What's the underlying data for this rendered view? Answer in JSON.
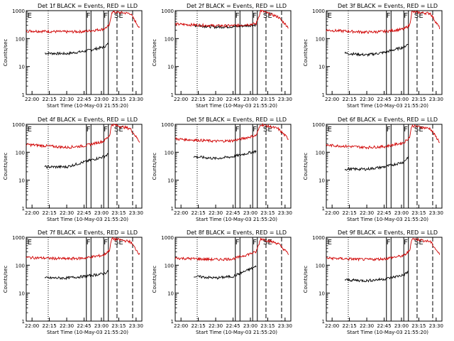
{
  "figure": {
    "ylabel": "Counts/sec",
    "xlabel": "Start Time (10-May-03 21:55:20)",
    "x_tick_labels": [
      "22:00",
      "22:15",
      "22:30",
      "22:45",
      "23:00",
      "23:15",
      "23:30"
    ],
    "y_tick_labels": [
      "1",
      "10",
      "100",
      "1000"
    ],
    "series_colors": {
      "events": "#000000",
      "lld": "#d00000"
    }
  },
  "chart_data": [
    {
      "type": "line",
      "title": "Det 1f BLACK = Events, RED = LLD",
      "markers": [
        "E",
        "F",
        "F",
        "S",
        "E"
      ],
      "ylim": [
        1,
        1000
      ],
      "yscale": "log",
      "xlabel": "Start Time (10-May-03 21:55:20)",
      "ylabel": "Counts/sec",
      "series": [
        {
          "color": "black",
          "points": [
            [
              "22:11",
              30
            ],
            [
              "22:30",
              29
            ],
            [
              "22:45",
              35
            ],
            [
              "23:02",
              50
            ],
            [
              "23:06",
              65
            ]
          ]
        },
        {
          "color": "red",
          "points": [
            [
              "21:55",
              190
            ],
            [
              "22:30",
              175
            ],
            [
              "22:45",
              180
            ],
            [
              "23:02",
              220
            ],
            [
              "23:07",
              300
            ],
            [
              "23:09",
              900
            ],
            [
              "23:25",
              800
            ],
            [
              "23:33",
              240
            ]
          ]
        }
      ]
    },
    {
      "type": "line",
      "title": "Det 2f BLACK = Events, RED = LLD",
      "markers": [
        "F",
        "F",
        "S",
        "E"
      ],
      "ylim": [
        1,
        1000
      ],
      "yscale": "log",
      "xlabel": "Start Time (10-May-03 21:55:20)",
      "ylabel": "Counts/sec",
      "series": [
        {
          "color": "black",
          "points": [
            [
              "22:11",
              300
            ],
            [
              "22:30",
              260
            ],
            [
              "22:45",
              270
            ],
            [
              "23:05",
              310
            ]
          ]
        },
        {
          "color": "red",
          "points": [
            [
              "21:55",
              330
            ],
            [
              "22:30",
              290
            ],
            [
              "22:45",
              290
            ],
            [
              "23:05",
              340
            ],
            [
              "23:09",
              1000
            ],
            [
              "23:24",
              600
            ],
            [
              "23:33",
              250
            ]
          ]
        }
      ]
    },
    {
      "type": "line",
      "title": "Det 3f BLACK = Events, RED = LLD",
      "markers": [
        "E",
        "F",
        "F",
        "S",
        "E"
      ],
      "ylim": [
        1,
        1000
      ],
      "yscale": "log",
      "xlabel": "Start Time (10-May-03 21:55:20)",
      "ylabel": "Counts/sec",
      "series": [
        {
          "color": "black",
          "points": [
            [
              "22:11",
              30
            ],
            [
              "22:30",
              26
            ],
            [
              "22:45",
              32
            ],
            [
              "23:02",
              50
            ],
            [
              "23:06",
              65
            ]
          ]
        },
        {
          "color": "red",
          "points": [
            [
              "21:55",
              200
            ],
            [
              "22:30",
              170
            ],
            [
              "22:45",
              180
            ],
            [
              "23:02",
              220
            ],
            [
              "23:07",
              300
            ],
            [
              "23:09",
              900
            ],
            [
              "23:25",
              800
            ],
            [
              "23:33",
              240
            ]
          ]
        }
      ]
    },
    {
      "type": "line",
      "title": "Det 4f BLACK = Events, RED = LLD",
      "markers": [
        "E",
        "F",
        "F",
        "S",
        "E"
      ],
      "ylim": [
        1,
        1000
      ],
      "yscale": "log",
      "xlabel": "Start Time (10-May-03 21:55:20)",
      "ylabel": "Counts/sec",
      "series": [
        {
          "color": "black",
          "points": [
            [
              "22:11",
              30
            ],
            [
              "22:30",
              30
            ],
            [
              "22:45",
              45
            ],
            [
              "23:02",
              70
            ],
            [
              "23:06",
              85
            ]
          ]
        },
        {
          "color": "red",
          "points": [
            [
              "21:55",
              190
            ],
            [
              "22:30",
              150
            ],
            [
              "22:45",
              170
            ],
            [
              "23:02",
              250
            ],
            [
              "23:07",
              400
            ],
            [
              "23:09",
              1000
            ],
            [
              "23:25",
              700
            ],
            [
              "23:33",
              240
            ]
          ]
        }
      ]
    },
    {
      "type": "line",
      "title": "Det 5f BLACK = Events, RED = LLD",
      "markers": [
        "F",
        "F",
        "S",
        "E"
      ],
      "ylim": [
        1,
        1000
      ],
      "yscale": "log",
      "xlabel": "Start Time (10-May-03 21:55:20)",
      "ylabel": "Counts/sec",
      "series": [
        {
          "color": "black",
          "points": [
            [
              "22:11",
              70
            ],
            [
              "22:30",
              60
            ],
            [
              "22:45",
              70
            ],
            [
              "23:05",
              110
            ]
          ]
        },
        {
          "color": "red",
          "points": [
            [
              "21:55",
              300
            ],
            [
              "22:30",
              250
            ],
            [
              "22:45",
              260
            ],
            [
              "23:05",
              400
            ],
            [
              "23:09",
              1000
            ],
            [
              "23:24",
              700
            ],
            [
              "23:33",
              300
            ]
          ]
        }
      ]
    },
    {
      "type": "line",
      "title": "Det 6f BLACK = Events, RED = LLD",
      "markers": [
        "E",
        "F",
        "F",
        "S",
        "E"
      ],
      "ylim": [
        1,
        1000
      ],
      "yscale": "log",
      "xlabel": "Start Time (10-May-03 21:55:20)",
      "ylabel": "Counts/sec",
      "series": [
        {
          "color": "black",
          "points": [
            [
              "22:11",
              25
            ],
            [
              "22:30",
              25
            ],
            [
              "22:45",
              30
            ],
            [
              "23:02",
              45
            ],
            [
              "23:06",
              70
            ]
          ]
        },
        {
          "color": "red",
          "points": [
            [
              "21:55",
              180
            ],
            [
              "22:30",
              150
            ],
            [
              "22:45",
              160
            ],
            [
              "23:02",
              220
            ],
            [
              "23:07",
              350
            ],
            [
              "23:09",
              900
            ],
            [
              "23:25",
              700
            ],
            [
              "23:33",
              230
            ]
          ]
        }
      ]
    },
    {
      "type": "line",
      "title": "Det 7f BLACK = Events, RED = LLD",
      "markers": [
        "E",
        "F",
        "F",
        "S",
        "E"
      ],
      "ylim": [
        1,
        1000
      ],
      "yscale": "log",
      "xlabel": "Start Time (10-May-03 21:55:20)",
      "ylabel": "Counts/sec",
      "series": [
        {
          "color": "black",
          "points": [
            [
              "22:11",
              35
            ],
            [
              "22:30",
              35
            ],
            [
              "22:45",
              40
            ],
            [
              "23:02",
              50
            ],
            [
              "23:06",
              60
            ]
          ]
        },
        {
          "color": "red",
          "points": [
            [
              "21:55",
              190
            ],
            [
              "22:30",
              170
            ],
            [
              "22:45",
              180
            ],
            [
              "23:02",
              230
            ],
            [
              "23:07",
              350
            ],
            [
              "23:09",
              900
            ],
            [
              "23:25",
              700
            ],
            [
              "23:33",
              250
            ]
          ]
        }
      ]
    },
    {
      "type": "line",
      "title": "Det 8f BLACK = Events, RED = LLD",
      "markers": [
        "F",
        "F",
        "S",
        "E"
      ],
      "ylim": [
        1,
        1000
      ],
      "yscale": "log",
      "xlabel": "Start Time (10-May-03 21:55:20)",
      "ylabel": "Counts/sec",
      "series": [
        {
          "color": "black",
          "points": [
            [
              "22:11",
              40
            ],
            [
              "22:30",
              35
            ],
            [
              "22:45",
              40
            ],
            [
              "23:05",
              90
            ]
          ]
        },
        {
          "color": "red",
          "points": [
            [
              "21:55",
              180
            ],
            [
              "22:30",
              160
            ],
            [
              "22:45",
              170
            ],
            [
              "23:05",
              300
            ],
            [
              "23:09",
              900
            ],
            [
              "23:24",
              600
            ],
            [
              "23:33",
              250
            ]
          ]
        }
      ]
    },
    {
      "type": "line",
      "title": "Det 9f BLACK = Events, RED = LLD",
      "markers": [
        "E",
        "F",
        "F",
        "S",
        "E"
      ],
      "ylim": [
        1,
        1000
      ],
      "yscale": "log",
      "xlabel": "Start Time (10-May-03 21:55:20)",
      "ylabel": "Counts/sec",
      "series": [
        {
          "color": "black",
          "points": [
            [
              "22:11",
              30
            ],
            [
              "22:30",
              28
            ],
            [
              "22:45",
              32
            ],
            [
              "23:02",
              45
            ],
            [
              "23:06",
              60
            ]
          ]
        },
        {
          "color": "red",
          "points": [
            [
              "21:55",
              180
            ],
            [
              "22:30",
              160
            ],
            [
              "22:45",
              170
            ],
            [
              "23:02",
              220
            ],
            [
              "23:07",
              330
            ],
            [
              "23:09",
              900
            ],
            [
              "23:25",
              700
            ],
            [
              "23:33",
              240
            ]
          ]
        }
      ]
    }
  ]
}
